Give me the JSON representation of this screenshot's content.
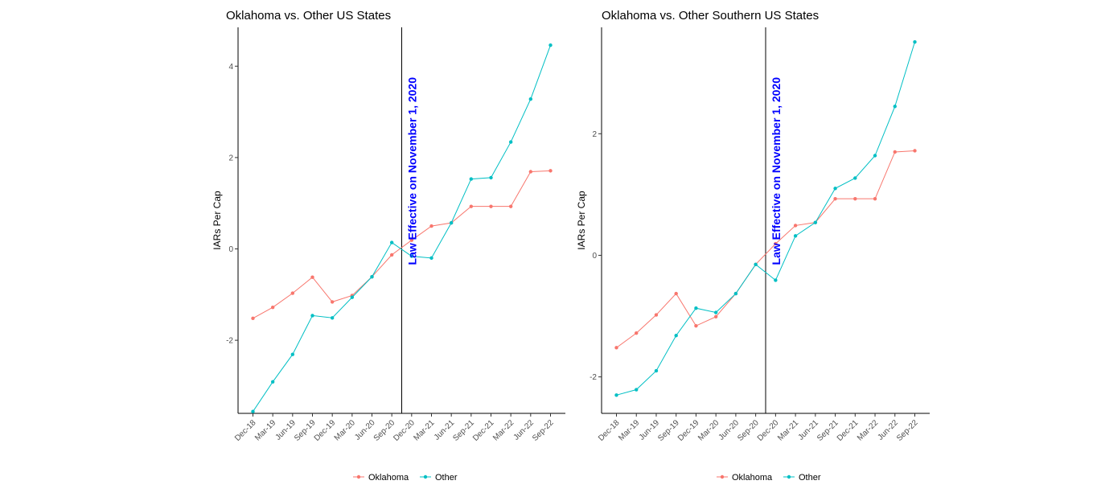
{
  "chart_data": [
    {
      "type": "line",
      "title": "Oklahoma vs. Other US States",
      "xlabel": "",
      "ylabel": "IARs Per Cap",
      "categories": [
        "Dec-18",
        "Mar-19",
        "Jun-19",
        "Sep-19",
        "Dec-19",
        "Mar-20",
        "Jun-20",
        "Sep-20",
        "Dec-20",
        "Mar-21",
        "Jun-21",
        "Sep-21",
        "Dec-21",
        "Mar-22",
        "Jun-22",
        "Sep-22"
      ],
      "ylim": [
        -3.6,
        4.85
      ],
      "yticks": [
        -2,
        0,
        2,
        4
      ],
      "ytick_labels": [
        "-2",
        "0",
        "2",
        "4"
      ],
      "vline_index": 7.5,
      "annotation": "Law Effective on November 1, 2020",
      "grid": false,
      "legend_position": "bottom",
      "series": [
        {
          "name": "Oklahoma",
          "color": "#F8766D",
          "values": [
            -1.52,
            -1.28,
            -0.97,
            -0.62,
            -1.16,
            -1.02,
            -0.61,
            -0.13,
            0.19,
            0.5,
            0.57,
            0.93,
            0.93,
            0.93,
            1.69,
            1.71
          ]
        },
        {
          "name": "Other",
          "color": "#00BFC4",
          "values": [
            -3.56,
            -2.91,
            -2.31,
            -1.46,
            -1.51,
            -1.06,
            -0.61,
            0.14,
            -0.16,
            -0.2,
            0.57,
            1.53,
            1.56,
            2.34,
            3.28,
            4.46
          ]
        }
      ]
    },
    {
      "type": "line",
      "title": "Oklahoma vs. Other Southern US States",
      "xlabel": "",
      "ylabel": "IARs Per Cap",
      "categories": [
        "Dec-18",
        "Mar-19",
        "Jun-19",
        "Sep-19",
        "Dec-19",
        "Mar-20",
        "Jun-20",
        "Sep-20",
        "Dec-20",
        "Mar-21",
        "Jun-21",
        "Sep-21",
        "Dec-21",
        "Mar-22",
        "Jun-22",
        "Sep-22"
      ],
      "ylim": [
        -2.6,
        3.75
      ],
      "yticks": [
        -2,
        0,
        2
      ],
      "ytick_labels": [
        "-2",
        "0",
        "2"
      ],
      "vline_index": 7.5,
      "annotation": "Law Effective on November 1, 2020",
      "grid": false,
      "legend_position": "bottom",
      "series": [
        {
          "name": "Oklahoma",
          "color": "#F8766D",
          "values": [
            -1.52,
            -1.28,
            -0.98,
            -0.63,
            -1.16,
            -1.01,
            -0.63,
            -0.15,
            0.19,
            0.49,
            0.54,
            0.93,
            0.93,
            0.93,
            1.7,
            1.72
          ]
        },
        {
          "name": "Other",
          "color": "#00BFC4",
          "values": [
            -2.3,
            -2.21,
            -1.9,
            -1.32,
            -0.87,
            -0.94,
            -0.63,
            -0.15,
            -0.41,
            0.32,
            0.54,
            1.1,
            1.27,
            1.64,
            2.45,
            3.51
          ]
        }
      ]
    }
  ]
}
